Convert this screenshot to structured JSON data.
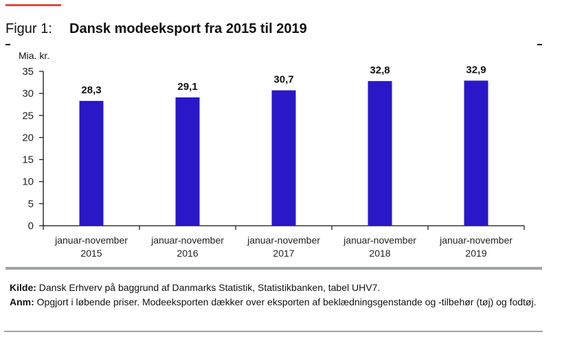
{
  "figure": {
    "label": "Figur 1:",
    "title": "Dansk modeeksport fra 2015 til 2019"
  },
  "notes": {
    "source_label": "Kilde:",
    "source_text": " Dansk Erhverv på baggrund af Danmarks Statistik, Statistikbanken, tabel UHV7.",
    "note_label": "Anm:",
    "note_text": " Opgjort i løbende priser. Modeeksporten dækker over eksporten af beklædningsgenstande og -tilbehør (tøj) og fodtøj."
  },
  "colors": {
    "bar": "#2a17c8",
    "accent": "#e8473a",
    "rule": "#9ea3a4"
  },
  "chart_data": {
    "type": "bar",
    "title": "Dansk modeeksport fra 2015 til 2019",
    "xlabel": "",
    "ylabel": "Mia. kr.",
    "ylim": [
      0,
      35
    ],
    "yticks": [
      0,
      5,
      10,
      15,
      20,
      25,
      30,
      35
    ],
    "grid": false,
    "legend": "none",
    "categories": [
      [
        "januar-november",
        "2015"
      ],
      [
        "januar-november",
        "2016"
      ],
      [
        "januar-november",
        "2017"
      ],
      [
        "januar-november",
        "2018"
      ],
      [
        "januar-november",
        "2019"
      ]
    ],
    "values": [
      28.3,
      29.1,
      30.7,
      32.8,
      32.9
    ],
    "data_labels": [
      "28,3",
      "29,1",
      "30,7",
      "32,8",
      "32,9"
    ]
  }
}
